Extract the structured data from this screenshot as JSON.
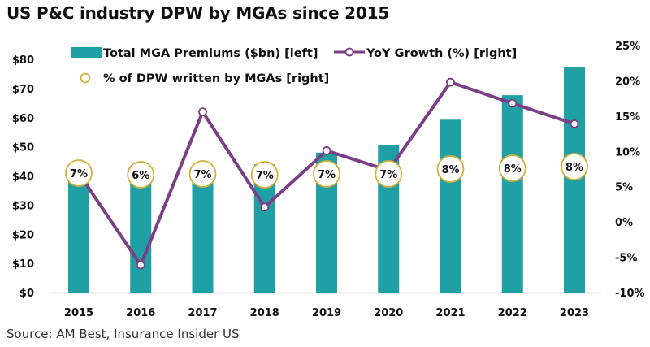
{
  "chart_data": {
    "type": "bar",
    "title": "US P&C industry DPW by MGAs since 2015",
    "source": "Source: AM Best, Insurance Insider US",
    "categories": [
      "2015",
      "2016",
      "2017",
      "2018",
      "2019",
      "2020",
      "2021",
      "2022",
      "2023"
    ],
    "series": [
      {
        "name": "Total MGA Premiums ($bn) [left]",
        "type": "bar",
        "axis": "left",
        "color": "#1fa0a5",
        "values": [
          39,
          39,
          40,
          44,
          48,
          50.7,
          59.3,
          67.7,
          77.2
        ]
      },
      {
        "name": "YoY Growth (%) [right]",
        "type": "line",
        "axis": "right",
        "color": "#7b3f86",
        "values": [
          6.9,
          -6.1,
          15.6,
          2.1,
          10.1,
          7.3,
          19.8,
          16.8,
          13.9
        ]
      },
      {
        "name": "% of DPW written by MGAs [right]",
        "type": "label-circle",
        "color": "#d4b03a",
        "labels": [
          "7%",
          "6%",
          "7%",
          "7%",
          "7%",
          "7%",
          "8%",
          "8%",
          "8%"
        ],
        "values": [
          7,
          6,
          7,
          7,
          7,
          7,
          8,
          8,
          8
        ]
      }
    ],
    "left_axis": {
      "ticks": [
        "$0",
        "$10",
        "$20",
        "$30",
        "$40",
        "$50",
        "$60",
        "$70",
        "$80"
      ],
      "ylim": [
        0,
        80
      ]
    },
    "right_axis": {
      "ticks": [
        "-10%",
        "-5%",
        "0%",
        "5%",
        "10%",
        "15%",
        "20%",
        "25%"
      ],
      "ylim": [
        -10,
        25
      ]
    },
    "legend": "top",
    "grid": false
  }
}
